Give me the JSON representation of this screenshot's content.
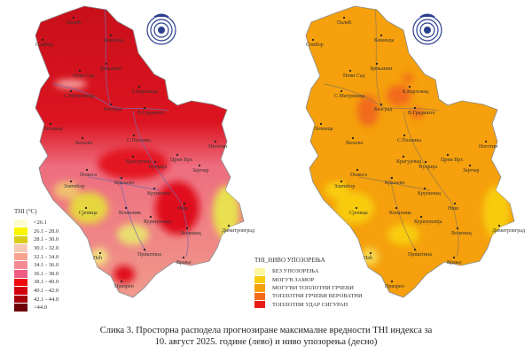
{
  "colors": {
    "logo_blue": "#2c3f8f",
    "thi_base_top": "#c8101a",
    "thi_base_bottom": "#f07c8c",
    "warning_base": "#f5a00c"
  },
  "left_map": {
    "legend_title": "THI (°C)",
    "legend": [
      {
        "label": "<26.1",
        "color": "#fdfccf"
      },
      {
        "label": "26.1 - 28.0",
        "color": "#fbf500"
      },
      {
        "label": "28.1 - 30.0",
        "color": "#d9cd1a"
      },
      {
        "label": "30.1 - 32.0",
        "color": "#f6c9b6"
      },
      {
        "label": "32.1 - 34.0",
        "color": "#f6a48e"
      },
      {
        "label": "34.1 - 36.0",
        "color": "#f58a94"
      },
      {
        "label": "36.1 - 38.0",
        "color": "#f05a83"
      },
      {
        "label": "38.1 - 40.0",
        "color": "#f20a0a"
      },
      {
        "label": "40.1 - 42.0",
        "color": "#d3000f"
      },
      {
        "label": "42.1 - 44.0",
        "color": "#a5000c"
      },
      {
        "label": ">44.0",
        "color": "#6e0008"
      }
    ]
  },
  "right_map": {
    "legend_title": "THI_НИВО УПОЗОРЕЊА",
    "legend": [
      {
        "label": "БЕЗ УПОЗОРЕЊА",
        "color": "#fdf6a0"
      },
      {
        "label": "МОГУЋ ЗАМОР",
        "color": "#f8cc10"
      },
      {
        "label": "МОГУЋИ ТОПЛОТНИ ГРЧЕВИ",
        "color": "#f5a00c"
      },
      {
        "label": "ТОПЛОТНИ ГРЧЕВИ ВЕРОВАТНИ",
        "color": "#f26a1a"
      },
      {
        "label": "ТОПЛОТНИ УДАР СИГУРАН",
        "color": "#e81c14"
      }
    ]
  },
  "cities": [
    "Палић",
    "Сомбор",
    "Кикинда",
    "Нови Сад",
    "Зрењанин",
    "С.Митровица",
    "Б.Карловац",
    "Београд",
    "В.Градиште",
    "Лозница",
    "Ваљево",
    "С.Паланка",
    "Неготин",
    "Крагујевац",
    "Ћуприја",
    "Црни Врх",
    "Зајечар",
    "Златибор",
    "Пожега",
    "Краљево",
    "Крушевац",
    "Сјеница",
    "Копаоник",
    "Ниш",
    "Куршумлија",
    "Лесковац",
    "Димитровград",
    "Пећ",
    "Приштина",
    "Врање",
    "Призрен"
  ],
  "caption": {
    "line1": "Слика 3. Просторна расподела прогнозиране максималне вредности THI индекса за",
    "line2": "10. август 2025. године (лево) и ниво упозорења (десно)"
  }
}
